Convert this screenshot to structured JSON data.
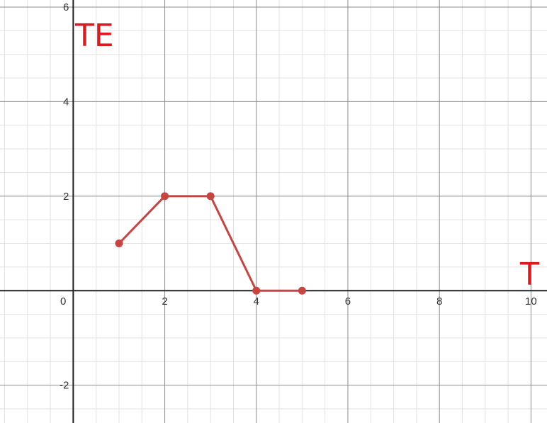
{
  "chart_data": {
    "type": "line",
    "title": "",
    "xlabel": "T",
    "ylabel": "TE",
    "xlim": [
      -1.6,
      10.35
    ],
    "ylim": [
      -2.8,
      6.15
    ],
    "x_ticks": [
      0,
      2,
      4,
      6,
      8,
      10
    ],
    "x_tick_labels": [
      "0",
      "2",
      "4",
      "6",
      "8",
      "10"
    ],
    "y_ticks": [
      -2,
      2,
      4,
      6
    ],
    "y_tick_labels": [
      "-2",
      "2",
      "4",
      "6"
    ],
    "grid": true,
    "minor_grid_step": 0.5,
    "series": [
      {
        "x": [
          1,
          2,
          3,
          4,
          5
        ],
        "y": [
          1,
          2,
          2,
          0,
          0
        ],
        "color": "#c74440",
        "markers": true
      }
    ]
  }
}
